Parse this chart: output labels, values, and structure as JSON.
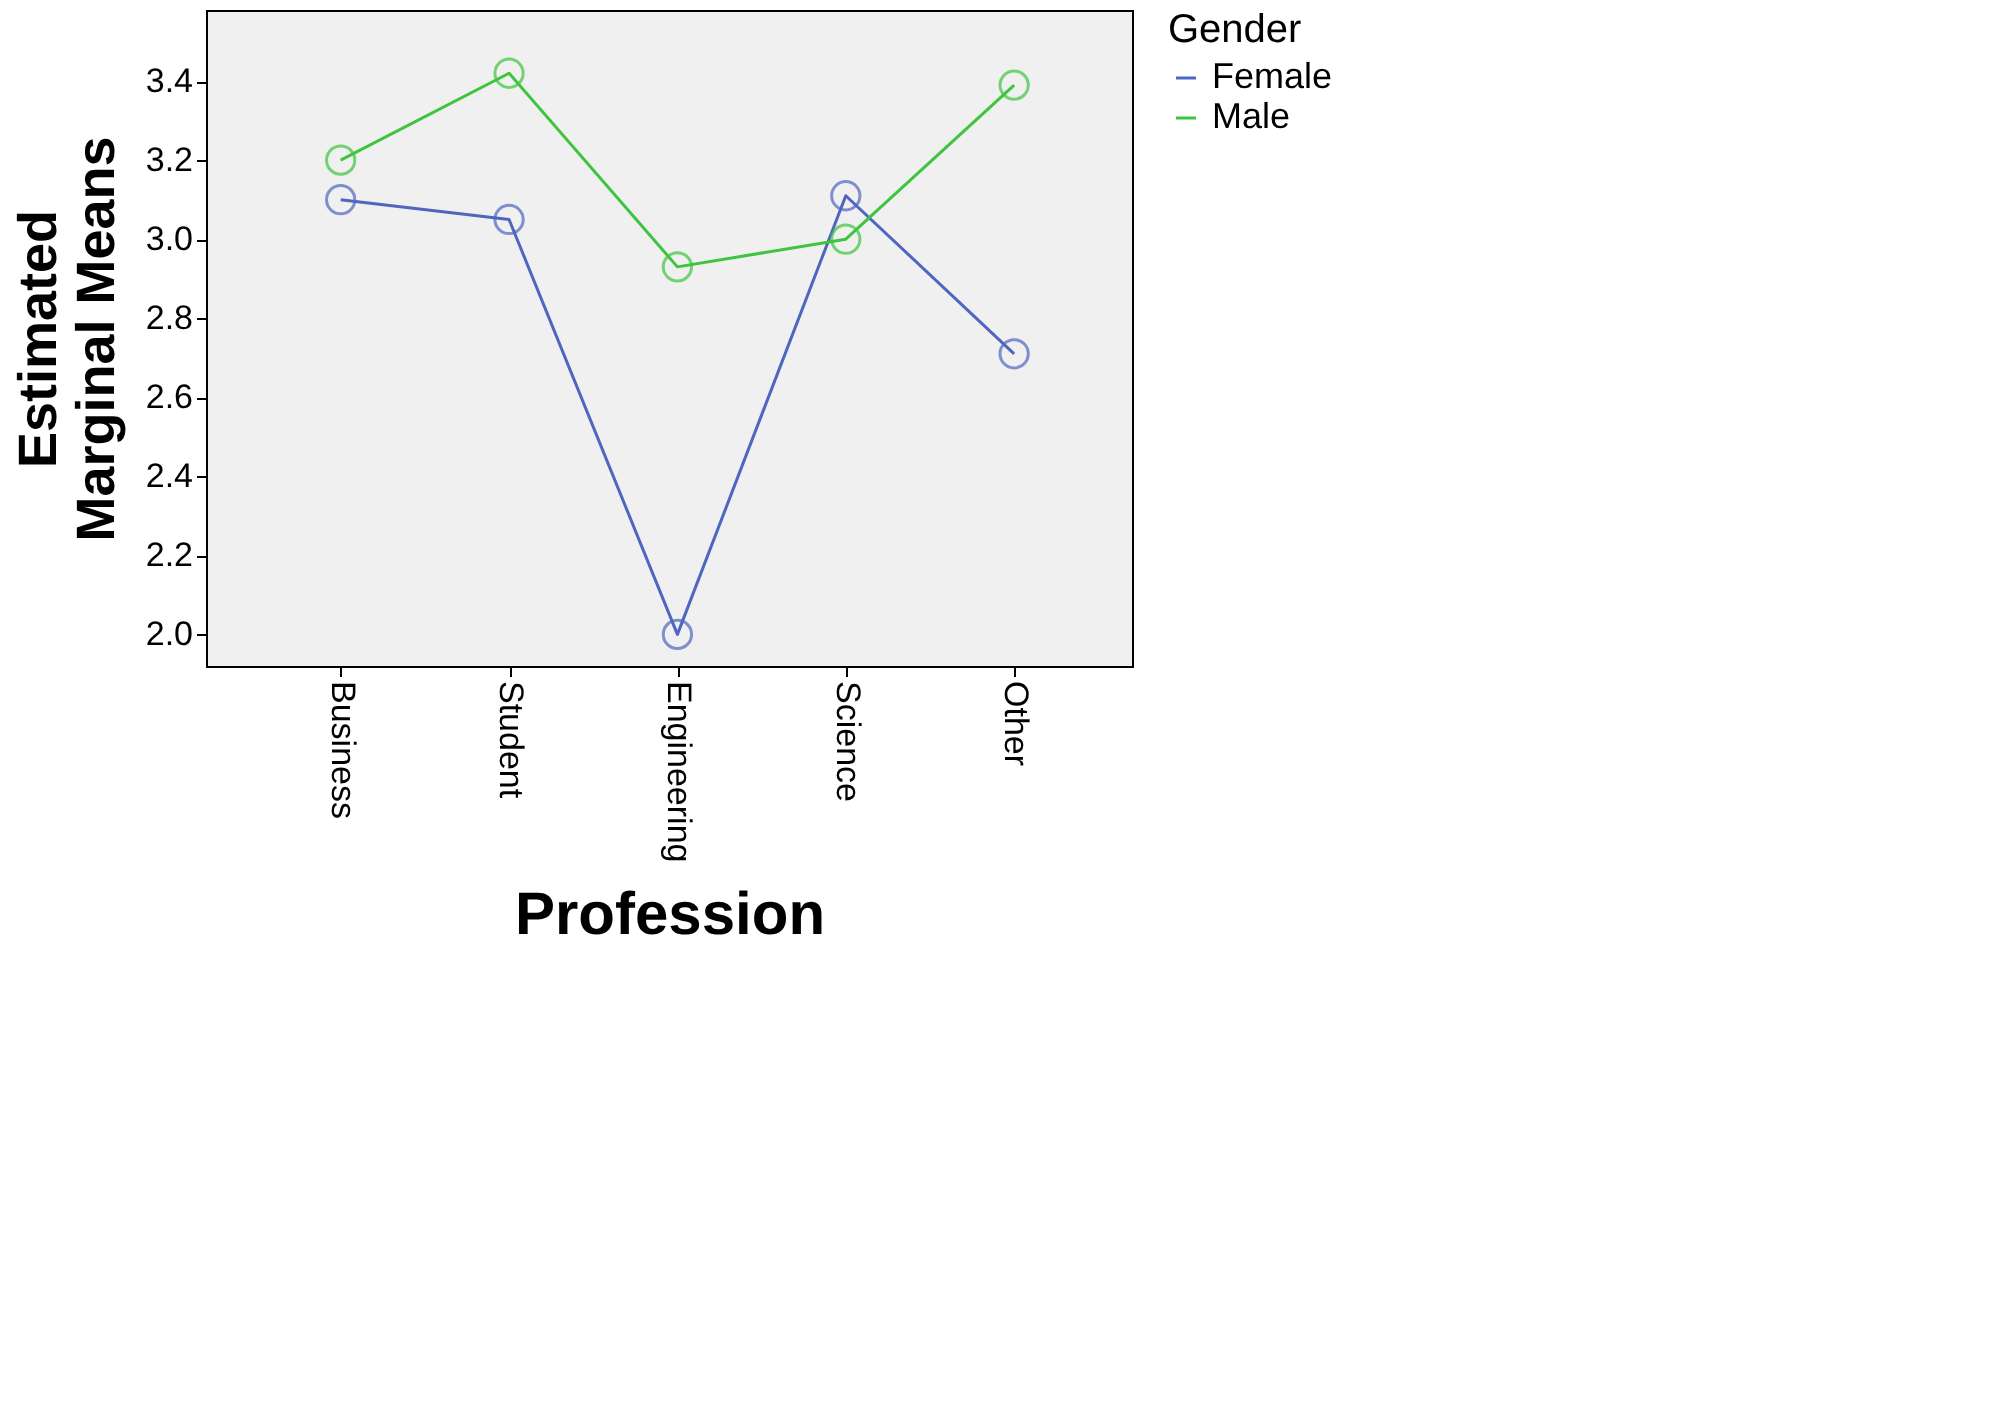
{
  "chart_data": {
    "type": "line",
    "xlabel": "Profession",
    "ylabel": "Estimated Marginal Means",
    "legend_title": "Gender",
    "categories": [
      "Business",
      "Student",
      "Engineering",
      "Science",
      "Other"
    ],
    "series": [
      {
        "name": "Female",
        "color": "#4f66c0",
        "values": [
          3.1,
          3.05,
          2.0,
          3.11,
          2.71
        ]
      },
      {
        "name": "Male",
        "color": "#3ec43e",
        "values": [
          3.2,
          3.42,
          2.93,
          3.0,
          3.39
        ]
      }
    ],
    "ylim": [
      1.92,
      3.58
    ],
    "yticks": [
      {
        "value": 2.0,
        "label": "2.0"
      },
      {
        "value": 2.2,
        "label": "2.2"
      },
      {
        "value": 2.4,
        "label": "2.4"
      },
      {
        "value": 2.6,
        "label": "2.6"
      },
      {
        "value": 2.8,
        "label": "2.8"
      },
      {
        "value": 3.0,
        "label": "3.0"
      },
      {
        "value": 3.2,
        "label": "3.2"
      },
      {
        "value": 3.4,
        "label": "3.4"
      }
    ],
    "grid": false,
    "legend": "top right",
    "marker": "circle",
    "line_style": "solid"
  }
}
